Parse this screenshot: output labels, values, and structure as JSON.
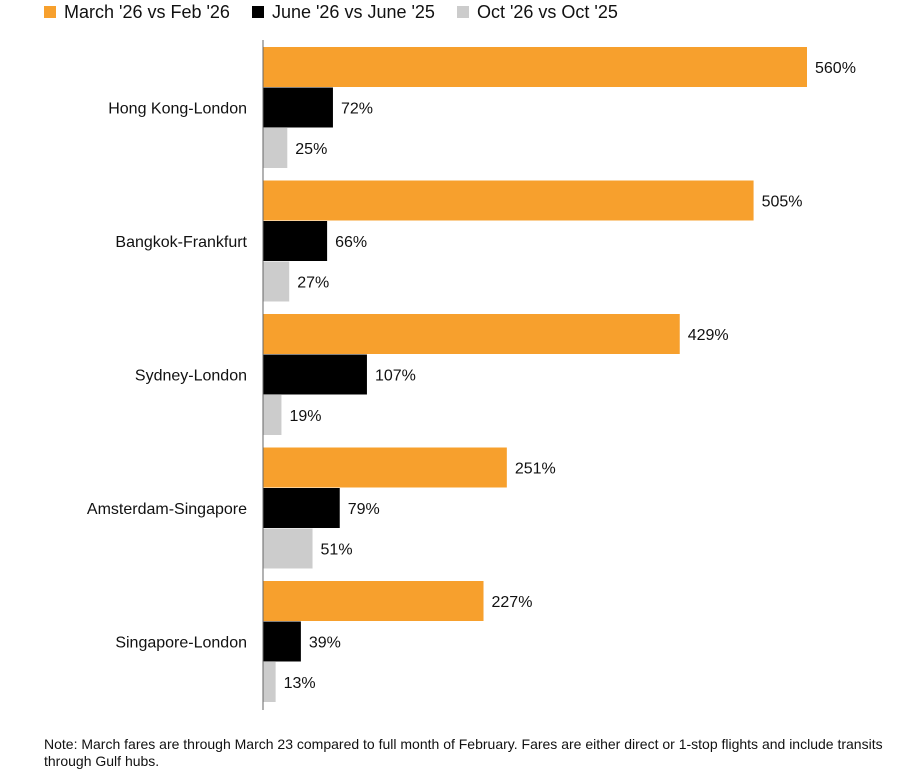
{
  "chart_data": {
    "type": "bar",
    "orientation": "horizontal",
    "categories": [
      "Hong Kong-London",
      "Bangkok-Frankfurt",
      "Sydney-London",
      "Amsterdam-Singapore",
      "Singapore-London"
    ],
    "series": [
      {
        "name": "March '26 vs Feb '26",
        "color": "#f7a02d",
        "values": [
          560,
          505,
          429,
          251,
          227
        ],
        "labels": [
          "560%",
          "505%",
          "429%",
          "251%",
          "227%"
        ]
      },
      {
        "name": "June '26 vs June '25",
        "color": "#000000",
        "values": [
          72,
          66,
          107,
          79,
          39
        ],
        "labels": [
          "72%",
          "66%",
          "107%",
          "79%",
          "39%"
        ]
      },
      {
        "name": "Oct '26 vs Oct '25",
        "color": "#cccccc",
        "values": [
          25,
          27,
          19,
          51,
          13
        ],
        "labels": [
          "25%",
          "27%",
          "19%",
          "51%",
          "13%"
        ]
      }
    ],
    "unit": "%",
    "legend": "top-left",
    "grid": false
  },
  "note": "Note: March fares are through March 23 compared to full month of February. Fares are either direct or 1-stop flights and include transits through Gulf hubs."
}
